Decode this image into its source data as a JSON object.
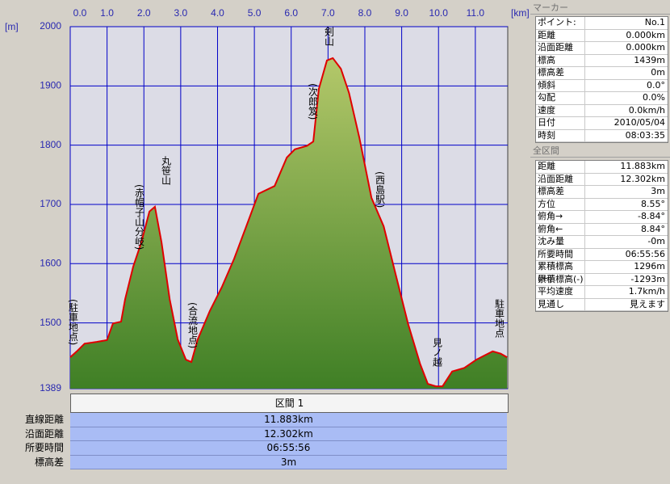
{
  "chart_data": {
    "type": "area",
    "y_label": "[m]",
    "x_label": "[km]",
    "x": [
      0,
      0.18,
      0.39,
      0.72,
      1.0,
      1.16,
      1.38,
      1.49,
      1.71,
      1.93,
      2.15,
      2.3,
      2.48,
      2.7,
      2.92,
      3.14,
      3.29,
      3.46,
      3.79,
      4.12,
      4.45,
      4.78,
      5.11,
      5.55,
      5.88,
      6.1,
      6.43,
      6.6,
      6.75,
      6.97,
      7.13,
      7.35,
      7.57,
      7.85,
      8.18,
      8.51,
      8.84,
      9.17,
      9.5,
      9.71,
      9.93,
      10.11,
      10.37,
      10.7,
      11.03,
      11.25,
      11.47,
      11.69,
      11.86
    ],
    "y": [
      1442,
      1452,
      1465,
      1468,
      1471,
      1499,
      1502,
      1540,
      1595,
      1636,
      1688,
      1696,
      1636,
      1540,
      1472,
      1438,
      1434,
      1472,
      1520,
      1561,
      1608,
      1663,
      1718,
      1731,
      1779,
      1793,
      1799,
      1806,
      1895,
      1943,
      1947,
      1929,
      1888,
      1813,
      1711,
      1663,
      1581,
      1499,
      1431,
      1397,
      1393,
      1393,
      1418,
      1424,
      1438,
      1445,
      1452,
      1448,
      1442
    ],
    "line_color": "#e00000",
    "fill_color": "#7ea040",
    "xlim": [
      0,
      11.88
    ],
    "ylim": [
      1389,
      2000
    ],
    "xticks": [
      {
        "value": 0,
        "label": "0.0"
      },
      {
        "value": 1,
        "label": "1.0"
      },
      {
        "value": 2,
        "label": "2.0"
      },
      {
        "value": 3,
        "label": "3.0"
      },
      {
        "value": 4,
        "label": "4.0"
      },
      {
        "value": 5,
        "label": "5.0"
      },
      {
        "value": 6,
        "label": "6.0"
      },
      {
        "value": 7,
        "label": "7.0"
      },
      {
        "value": 8,
        "label": "8.0"
      },
      {
        "value": 9,
        "label": "9.0"
      },
      {
        "value": 10,
        "label": "10.0"
      },
      {
        "value": 11,
        "label": "11.0"
      }
    ],
    "yticks": [
      1389,
      1500,
      1600,
      1700,
      1800,
      1900,
      2000
    ],
    "grid": true,
    "annotations": [
      "(駐車地点)",
      "(赤帽子山分岐)",
      "丸笹山",
      "(合流地点)",
      "(次郎笈)",
      "剣山",
      "(西島駅)",
      "見ノ越",
      "駐車地点"
    ]
  },
  "marker_panel": {
    "title": "マーカー",
    "rows": [
      [
        "ポイント:",
        "No.1"
      ],
      [
        "距離",
        "0.000km"
      ],
      [
        "沿面距離",
        "0.000km"
      ],
      [
        "標高",
        "1439m"
      ],
      [
        "標高差",
        "0m"
      ],
      [
        "傾斜",
        "0.0°"
      ],
      [
        "勾配",
        "0.0%"
      ],
      [
        "速度",
        "0.0km/h"
      ],
      [
        "日付",
        "2010/05/04"
      ],
      [
        "時刻",
        "08:03:35"
      ]
    ]
  },
  "total_panel": {
    "title": "全区間",
    "rows": [
      [
        "距離",
        "11.883km"
      ],
      [
        "沿面距離",
        "12.302km"
      ],
      [
        "標高差",
        "3m"
      ],
      [
        "方位",
        "8.55°"
      ],
      [
        "俯角→",
        "-8.84°"
      ],
      [
        "俯角←",
        "8.84°"
      ],
      [
        "沈み量",
        "-0m"
      ],
      [
        "所要時間",
        "06:55:56"
      ],
      [
        "累積標高(+)",
        "1296m"
      ],
      [
        "累積標高(-)",
        "-1293m"
      ],
      [
        "平均速度",
        "1.7km/h"
      ],
      [
        "見通し",
        "見えます"
      ]
    ]
  },
  "section_table": {
    "title": "区間 1",
    "rows": [
      [
        "直線距離",
        "11.883km"
      ],
      [
        "沿面距離",
        "12.302km"
      ],
      [
        "所要時間",
        "06:55:56"
      ],
      [
        "標高差",
        "3m"
      ]
    ]
  }
}
